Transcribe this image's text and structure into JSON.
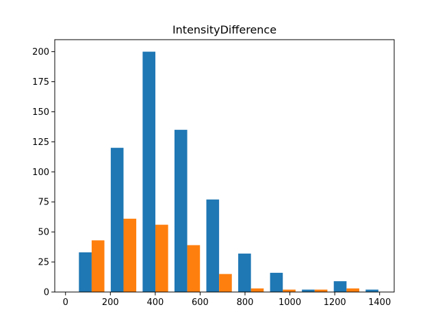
{
  "chart_data": {
    "type": "bar",
    "title": "IntensityDifference",
    "xlabel": "",
    "ylabel": "",
    "xlim": [
      -48,
      1465
    ],
    "ylim": [
      0,
      210
    ],
    "grid": false,
    "bin_edges": [
      45.5,
      187.5,
      329.5,
      471.5,
      613.5,
      755.5,
      897.5,
      1039.5,
      1181.5,
      1323.5,
      1465.5
    ],
    "x_ticks": [
      0,
      200,
      400,
      600,
      800,
      1000,
      1200,
      1400
    ],
    "y_ticks": [
      0,
      25,
      50,
      75,
      100,
      125,
      150,
      175,
      200
    ],
    "series": [
      {
        "values": [
          33,
          120,
          200,
          135,
          77,
          32,
          16,
          2,
          9,
          2
        ],
        "color": "#1f77b4"
      },
      {
        "values": [
          43,
          61,
          56,
          39,
          15,
          3,
          2,
          2,
          3,
          0
        ],
        "color": "#ff7f0e"
      }
    ]
  }
}
